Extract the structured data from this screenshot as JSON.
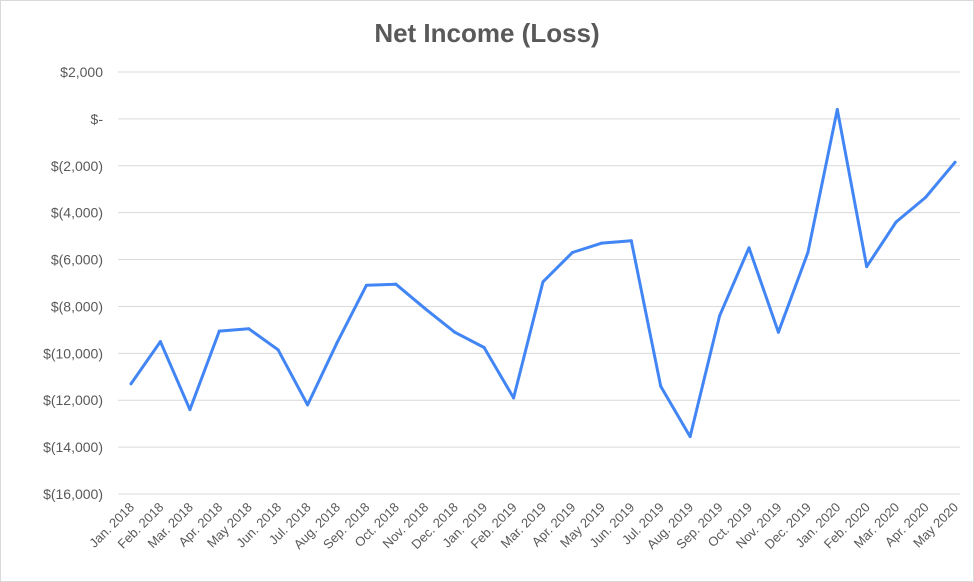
{
  "chart_data": {
    "type": "line",
    "title": "Net Income (Loss)",
    "xlabel": "",
    "ylabel": "",
    "ylim": [
      -16000,
      2000
    ],
    "yticks": [
      {
        "value": 2000,
        "label": "$2,000"
      },
      {
        "value": 0,
        "label": "$-"
      },
      {
        "value": -2000,
        "label": "$(2,000)"
      },
      {
        "value": -4000,
        "label": "$(4,000)"
      },
      {
        "value": -6000,
        "label": "$(6,000)"
      },
      {
        "value": -8000,
        "label": "$(8,000)"
      },
      {
        "value": -10000,
        "label": "$(10,000)"
      },
      {
        "value": -12000,
        "label": "$(12,000)"
      },
      {
        "value": -14000,
        "label": "$(14,000)"
      },
      {
        "value": -16000,
        "label": "$(16,000)"
      }
    ],
    "grid": true,
    "legend": "none",
    "categories": [
      "Jan. 2018",
      "Feb. 2018",
      "Mar. 2018",
      "Apr. 2018",
      "May 2018",
      "Jun. 2018",
      "Jul. 2018",
      "Aug. 2018",
      "Sep. 2018",
      "Oct. 2018",
      "Nov. 2018",
      "Dec. 2018",
      "Jan. 2019",
      "Feb. 2019",
      "Mar. 2019",
      "Apr. 2019",
      "May 2019",
      "Jun. 2019",
      "Jul. 2019",
      "Aug. 2019",
      "Sep. 2019",
      "Oct. 2019",
      "Nov. 2019",
      "Dec. 2019",
      "Jan. 2020",
      "Feb. 2020",
      "Mar. 2020",
      "Apr. 2020",
      "May 2020"
    ],
    "series": [
      {
        "color": "#4285f4",
        "values": [
          -11300,
          -9500,
          -12400,
          -9050,
          -8950,
          -9850,
          -12200,
          -9550,
          -7100,
          -7050,
          -8100,
          -9100,
          -9750,
          -11900,
          -6950,
          -5700,
          -5300,
          -5200,
          -11400,
          -13550,
          -8400,
          -5500,
          -9100,
          -5700,
          400,
          -6300,
          -4400,
          -3350,
          -1850
        ]
      }
    ]
  }
}
